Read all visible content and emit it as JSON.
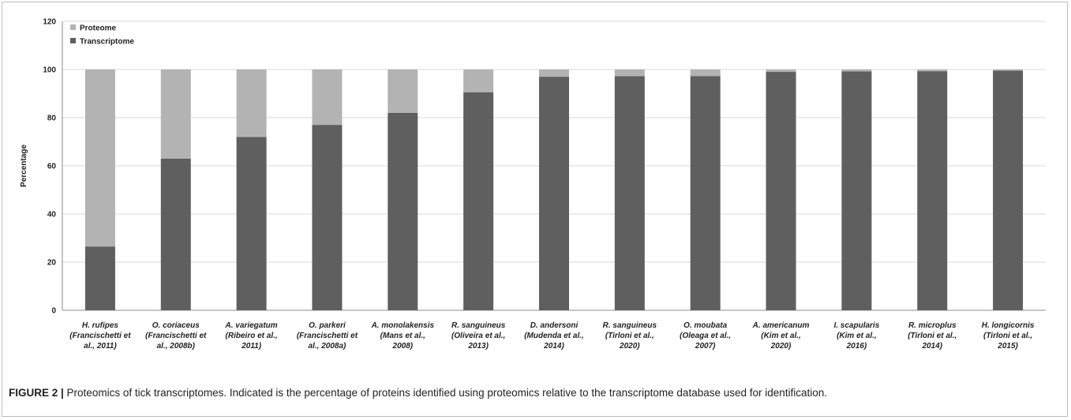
{
  "chart_data": {
    "type": "bar",
    "stacked": true,
    "ylabel": "Percentage",
    "ylim": [
      0,
      120
    ],
    "yticks": [
      "0",
      "20",
      "40",
      "60",
      "80",
      "100",
      "120"
    ],
    "grid": true,
    "legend_position": "top-left",
    "categories": [
      [
        "H. rufipes",
        "(Francischetti et",
        "al., 2011)"
      ],
      [
        "O. coriaceus",
        "(Francischetti et",
        "al., 2008b)"
      ],
      [
        "A. variegatum",
        "(Ribeiro et al.,",
        "2011)"
      ],
      [
        "O. parkeri",
        "(Francischetti et",
        "al., 2008a)"
      ],
      [
        "A. monolakensis",
        "(Mans et al.,",
        "2008)"
      ],
      [
        "R. sanguineus",
        "(Oliveira et al.,",
        "2013)"
      ],
      [
        "D. andersoni",
        "(Mudenda et al.,",
        "2014)"
      ],
      [
        "R. sanguineus",
        "(Tirloni et al.,",
        "2020)"
      ],
      [
        "O. moubata",
        "(Oleaga et al.,",
        "2007)"
      ],
      [
        "A. americanum",
        "(Kim et al.,",
        "2020)"
      ],
      [
        "I. scapularis",
        "(Kim et al.,",
        "2016)"
      ],
      [
        "R. microplus",
        "(Tirloni et al.,",
        "2014)"
      ],
      [
        "H. longicornis",
        "(Tirloni et al.,",
        "2015)"
      ]
    ],
    "series": [
      {
        "name": "Transcriptome",
        "color": "#5f5f5f",
        "values": [
          26.5,
          63,
          72,
          77,
          82,
          90.5,
          97,
          97.2,
          97.3,
          99,
          99.2,
          99.3,
          99.5
        ]
      },
      {
        "name": "Proteome",
        "color": "#b3b3b3",
        "values": [
          73.5,
          37,
          28,
          23,
          18,
          9.5,
          3,
          2.8,
          2.7,
          1,
          0.8,
          0.7,
          0.5
        ]
      }
    ],
    "legend": [
      "Proteome",
      "Transcriptome"
    ]
  },
  "caption": {
    "label": "FIGURE 2 |",
    "text": " Proteomics of tick transcriptomes. Indicated is the percentage of proteins identified using proteomics relative to the transcriptome database used for identification."
  }
}
